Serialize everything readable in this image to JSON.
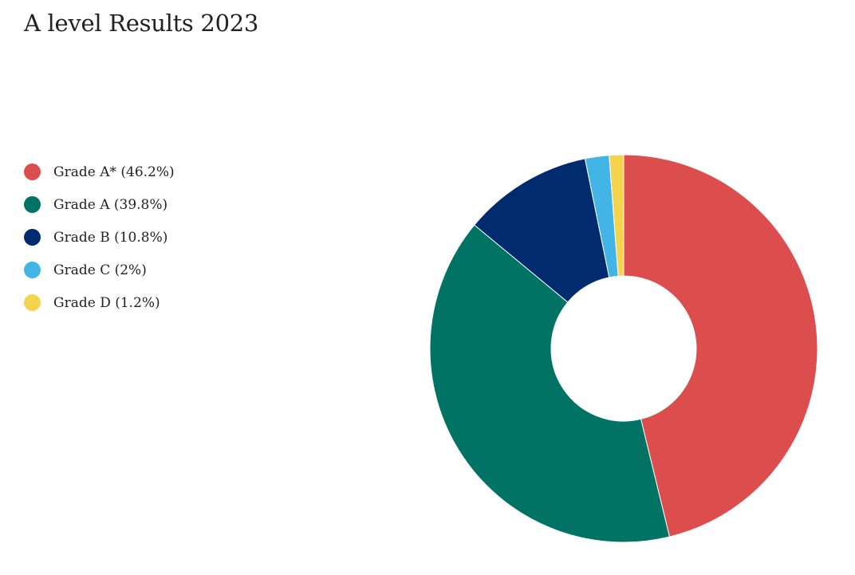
{
  "page": {
    "title": "A level Results 2023"
  },
  "chart_data": {
    "type": "pie",
    "variant": "donut",
    "title": "A level Results 2023",
    "legend_position": "left",
    "slices": [
      {
        "label": "Grade A*",
        "legend_text": "Grade A* (46.2%)",
        "value": 46.2,
        "color": "#DC4D4D"
      },
      {
        "label": "Grade A",
        "legend_text": "Grade A (39.8%)",
        "value": 39.8,
        "color": "#007365"
      },
      {
        "label": "Grade B",
        "legend_text": "Grade B (10.8%)",
        "value": 10.8,
        "color": "#002B6E"
      },
      {
        "label": "Grade C",
        "legend_text": "Grade C (2%)",
        "value": 2,
        "color": "#43B4E6"
      },
      {
        "label": "Grade D",
        "legend_text": "Grade D (1.2%)",
        "value": 1.2,
        "color": "#F4D44D"
      }
    ]
  }
}
